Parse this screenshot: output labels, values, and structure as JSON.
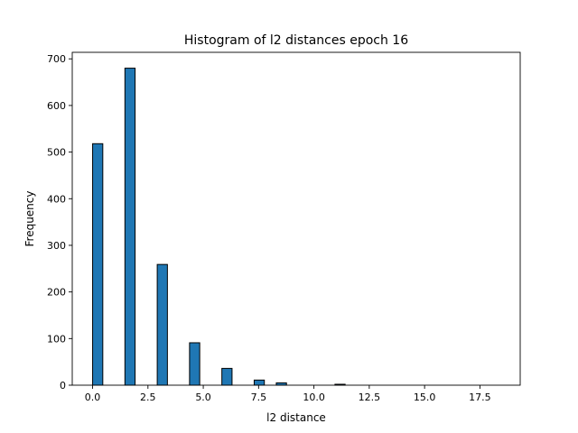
{
  "chart_data": {
    "type": "bar",
    "title": "Histogram of l2 distances epoch 16",
    "xlabel": "l2 distance",
    "ylabel": "Frequency",
    "xlim": [
      -0.92,
      19.32
    ],
    "ylim": [
      0,
      714
    ],
    "xticks": [
      0.0,
      2.5,
      5.0,
      7.5,
      10.0,
      12.5,
      15.0,
      17.5
    ],
    "xtick_labels": [
      "0.0",
      "2.5",
      "5.0",
      "7.5",
      "10.0",
      "12.5",
      "15.0",
      "17.5"
    ],
    "yticks": [
      0,
      100,
      200,
      300,
      400,
      500,
      600,
      700
    ],
    "ytick_labels": [
      "0",
      "100",
      "200",
      "300",
      "400",
      "500",
      "600",
      "700"
    ],
    "bar_color": "#1f77b4",
    "edge_color": "#000000",
    "bins": [
      {
        "x0": 0.0,
        "x1": 0.46,
        "value": 518
      },
      {
        "x0": 1.46,
        "x1": 1.92,
        "value": 680
      },
      {
        "x0": 2.92,
        "x1": 3.38,
        "value": 259
      },
      {
        "x0": 4.38,
        "x1": 4.84,
        "value": 91
      },
      {
        "x0": 5.84,
        "x1": 6.3,
        "value": 36
      },
      {
        "x0": 7.3,
        "x1": 7.76,
        "value": 11
      },
      {
        "x0": 8.3,
        "x1": 8.76,
        "value": 5
      },
      {
        "x0": 10.95,
        "x1": 11.41,
        "value": 2
      },
      {
        "x0": 12.4,
        "x1": 12.86,
        "value": 0
      },
      {
        "x0": 13.86,
        "x1": 14.32,
        "value": 0
      },
      {
        "x0": 15.32,
        "x1": 15.78,
        "value": 0
      },
      {
        "x0": 16.78,
        "x1": 17.24,
        "value": 0
      },
      {
        "x0": 17.9,
        "x1": 18.36,
        "value": 0
      }
    ]
  }
}
